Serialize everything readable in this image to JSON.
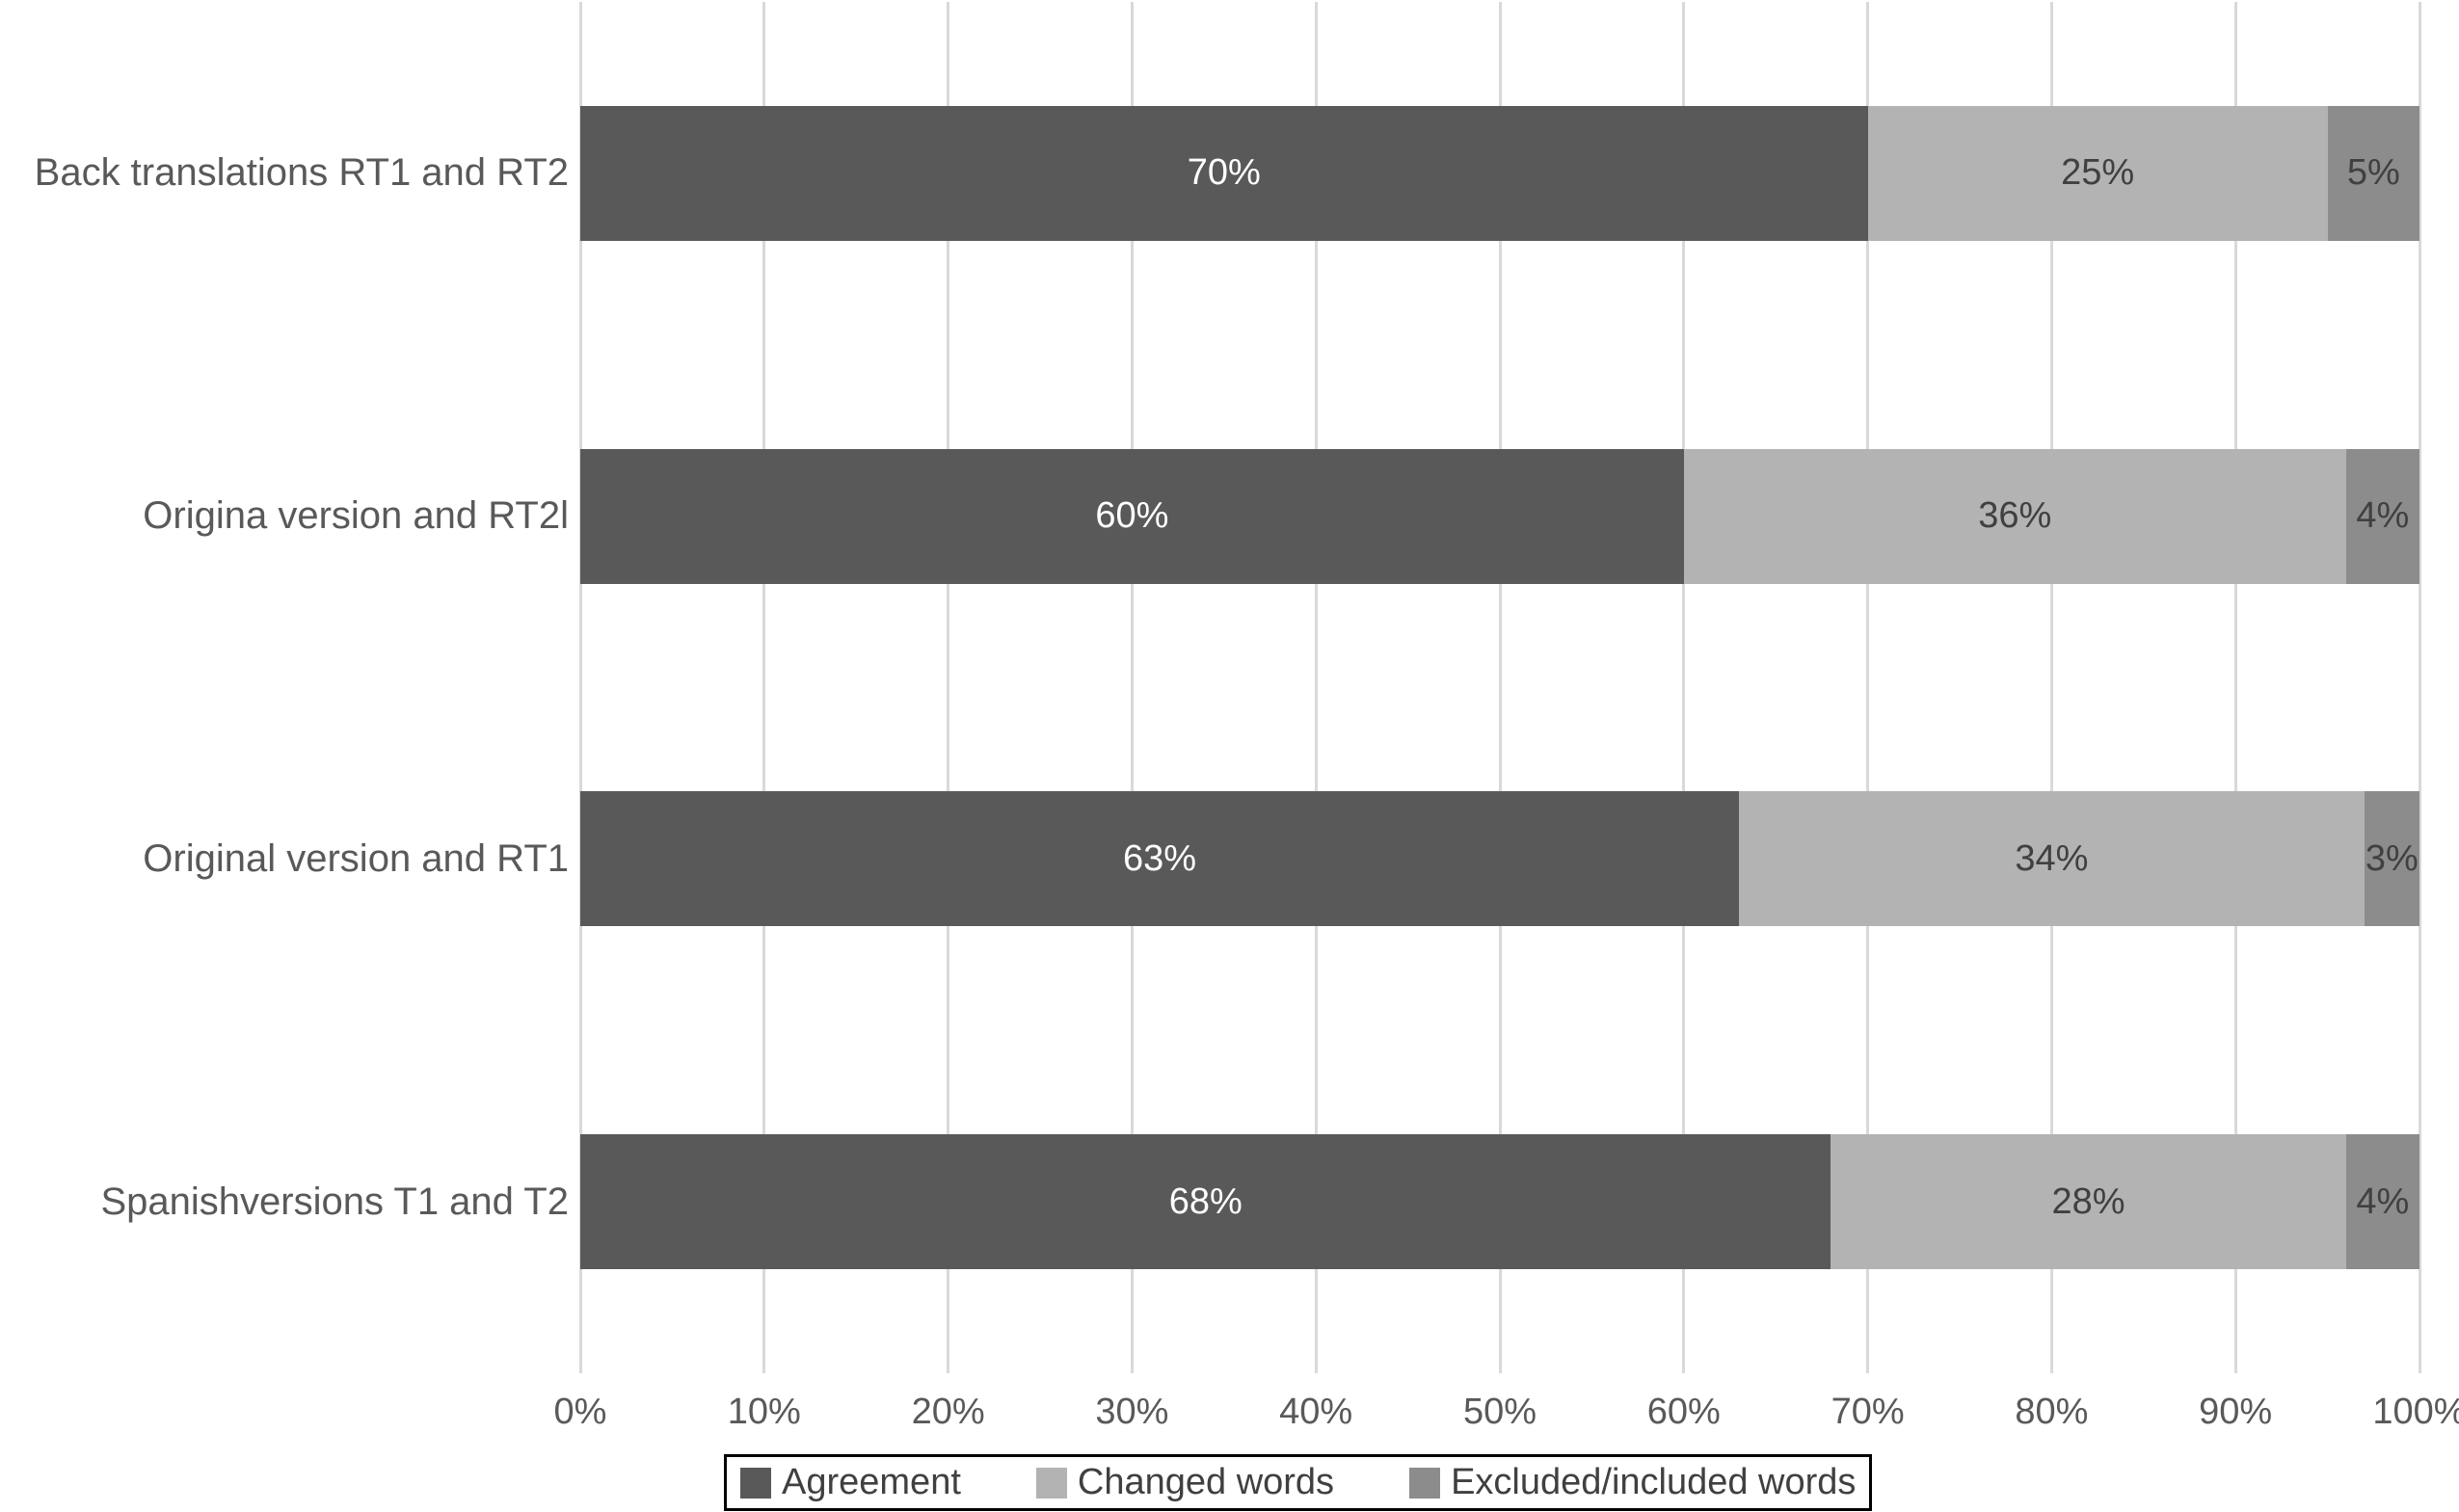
{
  "chart_data": {
    "type": "bar",
    "orientation": "horizontal",
    "stacked": true,
    "unit": "%",
    "categories": [
      "Back translations RT1 and RT2",
      "Origina version and RT2l",
      "Original version and RT1",
      "Spanishversions T1 and T2"
    ],
    "series": [
      {
        "name": "Agreement",
        "color": "#595959",
        "label_color": "#ffffff",
        "values": [
          70,
          60,
          63,
          68
        ]
      },
      {
        "name": "Changed words",
        "color": "#b3b3b3",
        "label_color": "#404040",
        "values": [
          25,
          36,
          34,
          28
        ]
      },
      {
        "name": "Excluded/included words",
        "color": "#8c8c8c",
        "label_color": "#404040",
        "values": [
          5,
          4,
          3,
          4
        ]
      }
    ],
    "x_ticks": [
      "0%",
      "10%",
      "20%",
      "30%",
      "40%",
      "50%",
      "60%",
      "70%",
      "80%",
      "90%",
      "100%"
    ],
    "xlim": [
      0,
      100
    ],
    "grid": true,
    "gridline_color": "#d9d9d9",
    "axis_text_color": "#595959",
    "legend_position": "bottom",
    "background": "#ffffff",
    "title": "",
    "xlabel": "",
    "ylabel": ""
  }
}
